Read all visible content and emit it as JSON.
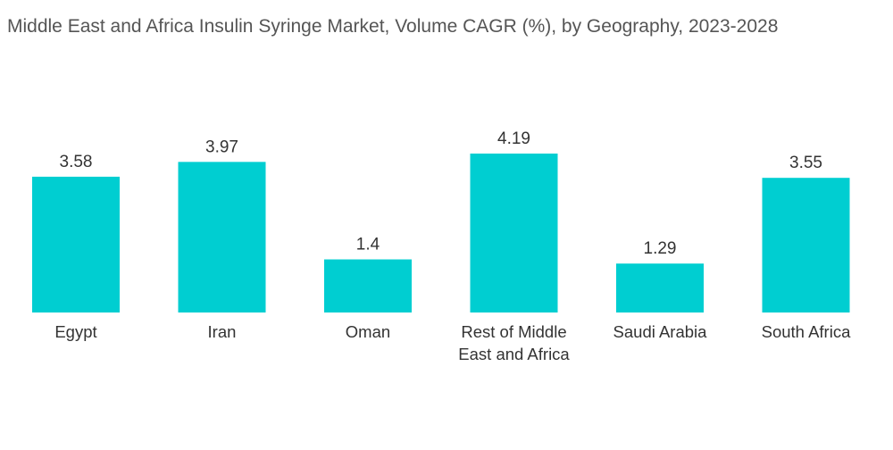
{
  "colors": {
    "bar": "#00CED1"
  },
  "chart_data": {
    "type": "bar",
    "title": "Middle East and Africa Insulin Syringe Market, Volume CAGR (%), by Geography, 2023-2028",
    "xlabel": "",
    "ylabel": "",
    "grid": false,
    "legend": "none",
    "categories": [
      [
        "Egypt"
      ],
      [
        "Iran"
      ],
      [
        "Oman"
      ],
      [
        "Rest of Middle",
        "East and Africa"
      ],
      [
        "Saudi Arabia"
      ],
      [
        "South Africa"
      ]
    ],
    "values": [
      3.58,
      3.97,
      1.4,
      4.19,
      1.29,
      3.55
    ],
    "value_labels": [
      "3.58",
      "3.97",
      "1.4",
      "4.19",
      "1.29",
      "3.55"
    ],
    "ylim": [
      0,
      4.19
    ]
  }
}
